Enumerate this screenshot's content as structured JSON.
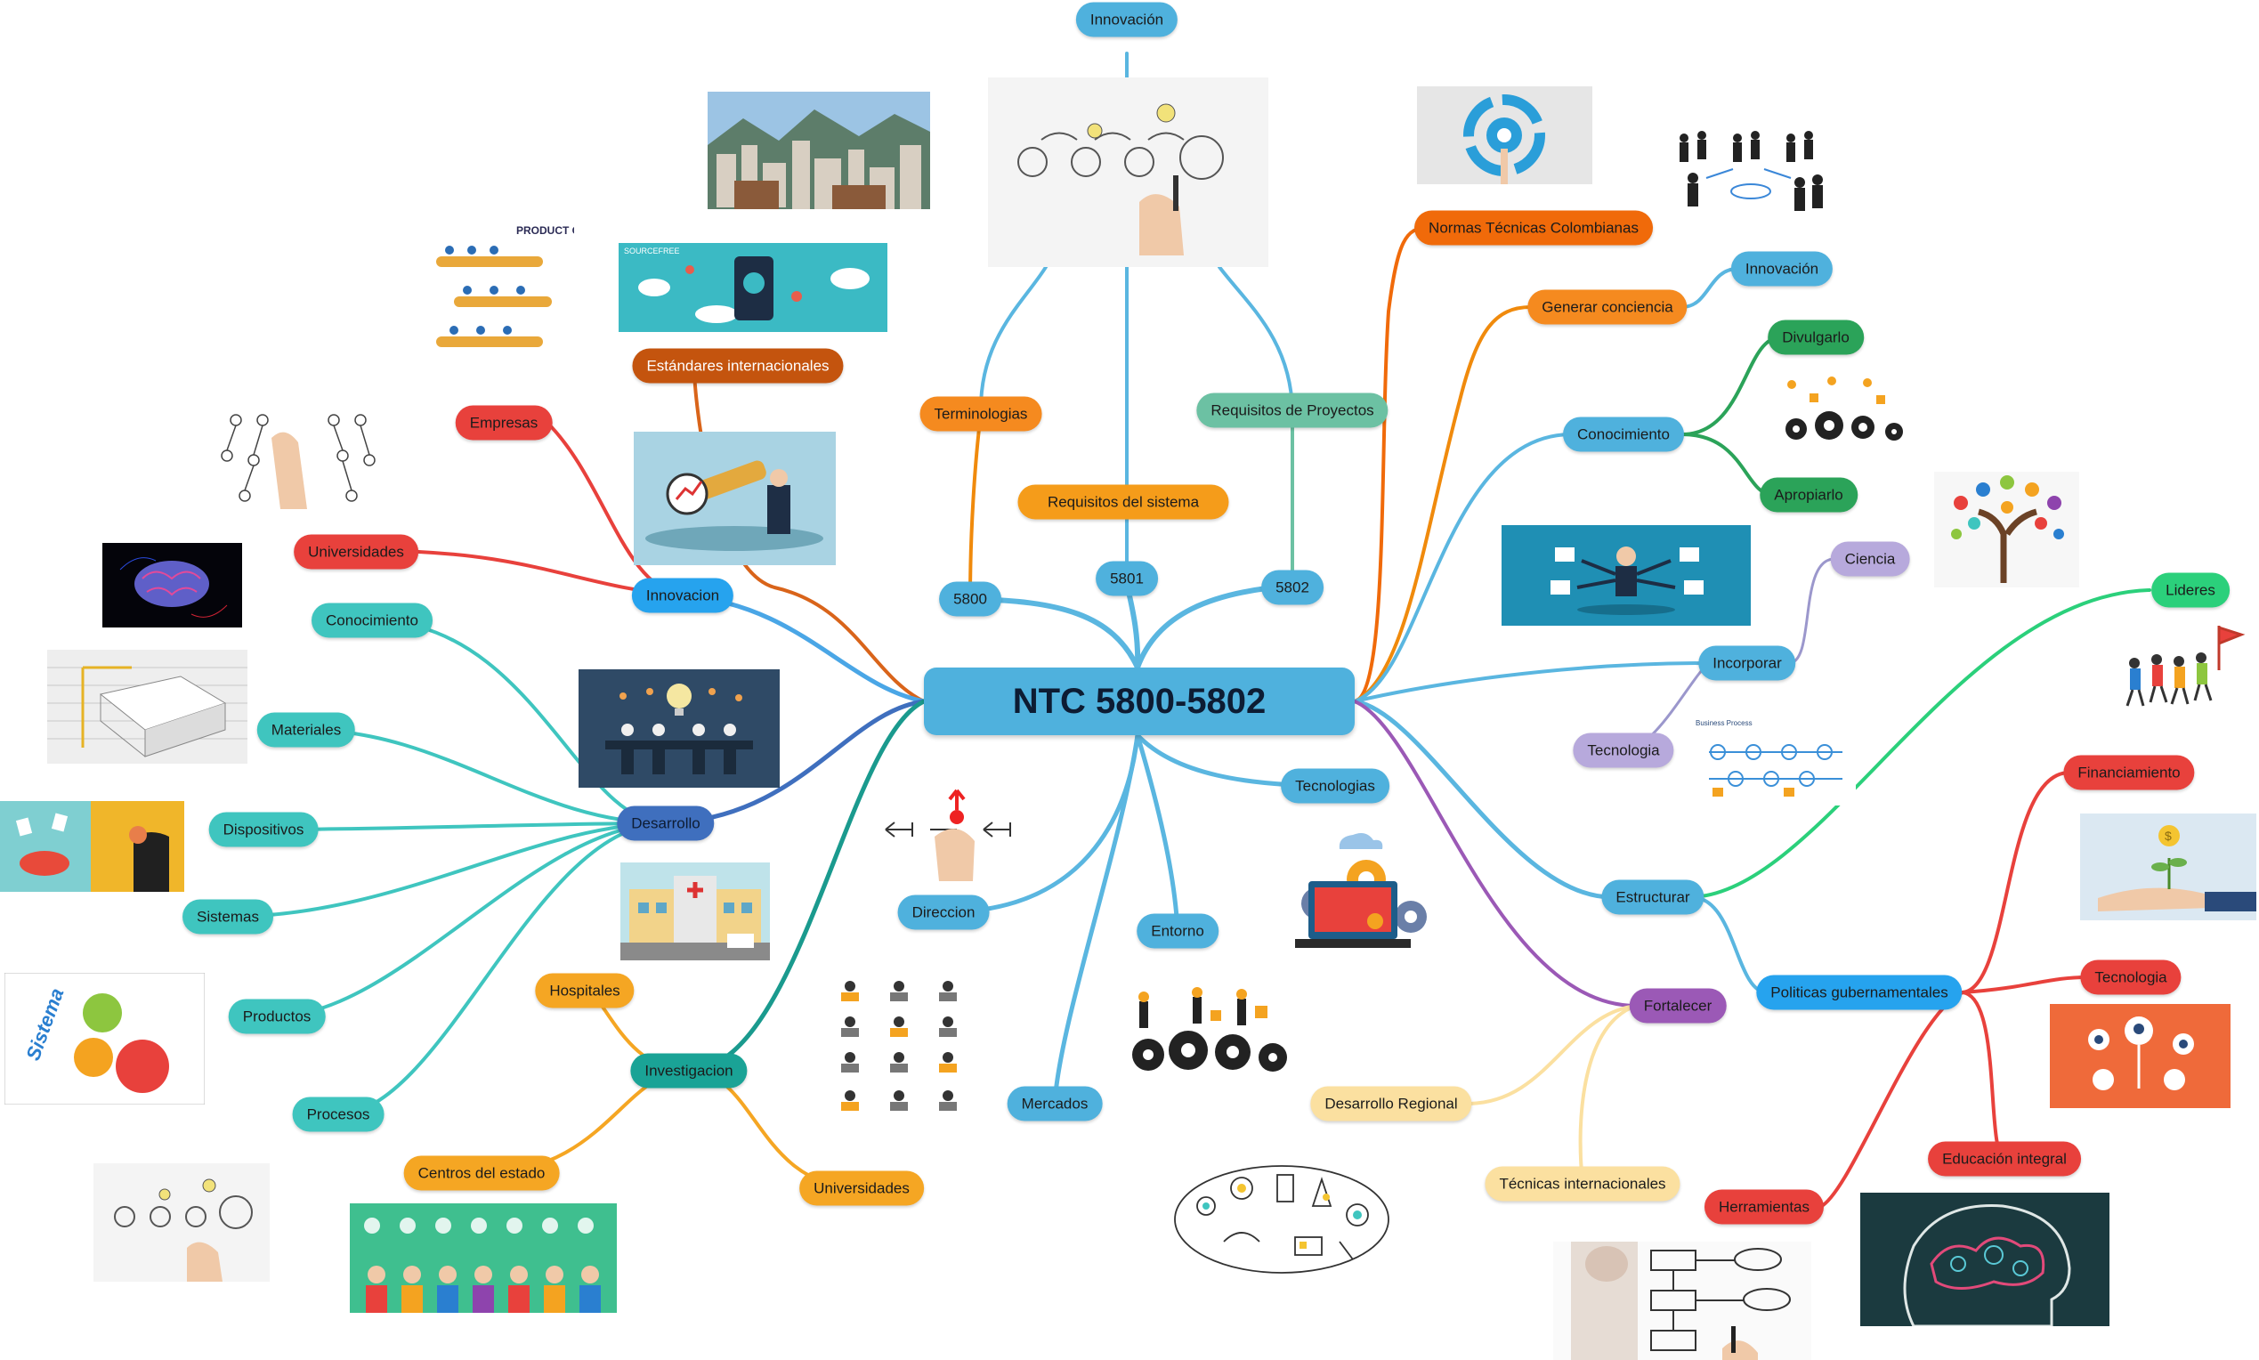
{
  "center": {
    "label": "NTC 5800-5802"
  },
  "nodes": [
    {
      "id": "innovacion_top",
      "label": "Innovación"
    },
    {
      "id": "terminologias",
      "label": "Terminologias"
    },
    {
      "id": "requisitos_sistema",
      "label": "Requisitos del sistema"
    },
    {
      "id": "requisitos_proyectos",
      "label": "Requisitos de Proyectos"
    },
    {
      "id": "n5800",
      "label": "5800"
    },
    {
      "id": "n5801",
      "label": "5801"
    },
    {
      "id": "n5802",
      "label": "5802"
    },
    {
      "id": "estandares",
      "label": "Estándares internacionales"
    },
    {
      "id": "empresas",
      "label": "Empresas"
    },
    {
      "id": "universidades_l",
      "label": "Universidades"
    },
    {
      "id": "innovacion_l",
      "label": "Innovacion"
    },
    {
      "id": "conocimiento_l",
      "label": "Conocimiento"
    },
    {
      "id": "materiales",
      "label": "Materiales"
    },
    {
      "id": "dispositivos",
      "label": "Dispositivos"
    },
    {
      "id": "sistemas",
      "label": "Sistemas"
    },
    {
      "id": "productos",
      "label": "Productos"
    },
    {
      "id": "procesos",
      "label": "Procesos"
    },
    {
      "id": "desarrollo",
      "label": "Desarrollo"
    },
    {
      "id": "hospitales",
      "label": "Hospitales"
    },
    {
      "id": "investigacion",
      "label": "Investigacion"
    },
    {
      "id": "centros",
      "label": "Centros del estado"
    },
    {
      "id": "universidades_b",
      "label": "Universidades"
    },
    {
      "id": "direccion",
      "label": "Direccion"
    },
    {
      "id": "entorno",
      "label": "Entorno"
    },
    {
      "id": "mercados",
      "label": "Mercados"
    },
    {
      "id": "tecnologias",
      "label": "Tecnologias"
    },
    {
      "id": "normas",
      "label": "Normas Técnicas Colombianas"
    },
    {
      "id": "generar",
      "label": "Generar conciencia"
    },
    {
      "id": "innovacion_r",
      "label": "Innovación"
    },
    {
      "id": "conocimiento_r",
      "label": "Conocimiento"
    },
    {
      "id": "divulgarlo",
      "label": "Divulgarlo"
    },
    {
      "id": "apropiarlo",
      "label": "Apropiarlo"
    },
    {
      "id": "ciencia",
      "label": "Ciencia"
    },
    {
      "id": "incorporar",
      "label": "Incorporar"
    },
    {
      "id": "tecnologia_r",
      "label": "Tecnologia"
    },
    {
      "id": "lideres",
      "label": "Lideres"
    },
    {
      "id": "estructurar",
      "label": "Estructurar"
    },
    {
      "id": "financiamiento",
      "label": "Financiamiento"
    },
    {
      "id": "politicas",
      "label": "Politicas gubernamentales"
    },
    {
      "id": "tecnologia_p",
      "label": "Tecnologia"
    },
    {
      "id": "fortalecer",
      "label": "Fortalecer"
    },
    {
      "id": "desarrollo_regional",
      "label": "Desarrollo Regional"
    },
    {
      "id": "tecnicas",
      "label": "Técnicas internacionales"
    },
    {
      "id": "educacion",
      "label": "Educación integral"
    },
    {
      "id": "herramientas",
      "label": "Herramientas"
    }
  ],
  "image_texts": {
    "product_creation": "PRODUCT CREATION",
    "sourcefree": "SOURCEFREE",
    "sistema": "Sistema",
    "business_process": "Business Process"
  },
  "colors": {
    "center": "#4fb1dd",
    "blue_branch": "#5ab6e0",
    "orange": "#f08a0c",
    "red": "#e8413c",
    "teal": "#3fc5bf",
    "navy_blue": "#3f6fbe",
    "green": "#2bb673",
    "purple": "#9b59b6"
  }
}
